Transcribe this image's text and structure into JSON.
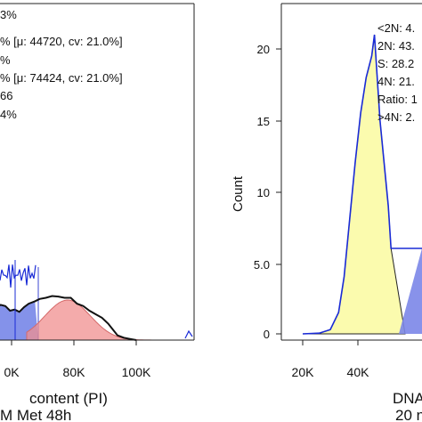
{
  "chart_data": [
    {
      "type": "histogram",
      "xlabel": "content (PI)",
      "subtitle": "M Met 48h",
      "x_ticks": [
        "0K",
        "80K",
        "100K"
      ],
      "annotations": [
        "3%",
        "% [μ: 44720, cv: 21.0%]",
        "%",
        "% [μ: 74424, cv: 21.0%]",
        "66",
        "4%"
      ],
      "fills": {
        "g1_color": "#6f7fe6",
        "g2_color": "#f08f8f",
        "s_color": "#f4f0a6"
      },
      "histogram_outline": [
        [
          20000,
          80
        ],
        [
          24000,
          78
        ],
        [
          26000,
          75
        ],
        [
          27000,
          60
        ],
        [
          28000,
          70
        ],
        [
          30000,
          55
        ],
        [
          33000,
          60
        ],
        [
          36000,
          58
        ],
        [
          39000,
          50
        ],
        [
          42000,
          52
        ],
        [
          45000,
          48
        ],
        [
          48000,
          56
        ],
        [
          51000,
          62
        ],
        [
          55000,
          66
        ],
        [
          58000,
          70
        ],
        [
          62000,
          72
        ],
        [
          66000,
          75
        ],
        [
          70000,
          74
        ],
        [
          74000,
          72
        ],
        [
          78000,
          72
        ],
        [
          82000,
          62
        ],
        [
          86000,
          58
        ],
        [
          90000,
          50
        ],
        [
          94000,
          44
        ],
        [
          98000,
          38
        ],
        [
          102000,
          28
        ],
        [
          105000,
          18
        ],
        [
          108000,
          8
        ],
        [
          112000,
          4
        ],
        [
          116000,
          2
        ],
        [
          120000,
          0
        ]
      ]
    },
    {
      "type": "histogram",
      "xlabel": "DNA",
      "subtitle": "20 n",
      "ylabel": "Count",
      "ylim": [
        0,
        23
      ],
      "y_ticks": [
        "0",
        "5.0",
        "10",
        "15",
        "20"
      ],
      "x_ticks": [
        "20K",
        "40K"
      ],
      "stats": [
        "<2N: 4.",
        "2N: 43.",
        "S: 28.2",
        "4N: 21.",
        "Ratio: 1",
        ">4N: 2."
      ],
      "fills": {
        "g1_color": "#fbfbae",
        "g2_color": "#7b86e8"
      },
      "histogram_outline": [
        [
          20000,
          0
        ],
        [
          26000,
          0.05
        ],
        [
          30000,
          0.3
        ],
        [
          33000,
          1.5
        ],
        [
          35000,
          4
        ],
        [
          37000,
          8
        ],
        [
          39000,
          12
        ],
        [
          41000,
          15.5
        ],
        [
          43000,
          18
        ],
        [
          45000,
          19.5
        ],
        [
          46000,
          21
        ],
        [
          47000,
          18
        ],
        [
          48000,
          15
        ],
        [
          49000,
          13
        ],
        [
          50000,
          11
        ],
        [
          51000,
          9
        ],
        [
          52000,
          6
        ]
      ]
    }
  ]
}
